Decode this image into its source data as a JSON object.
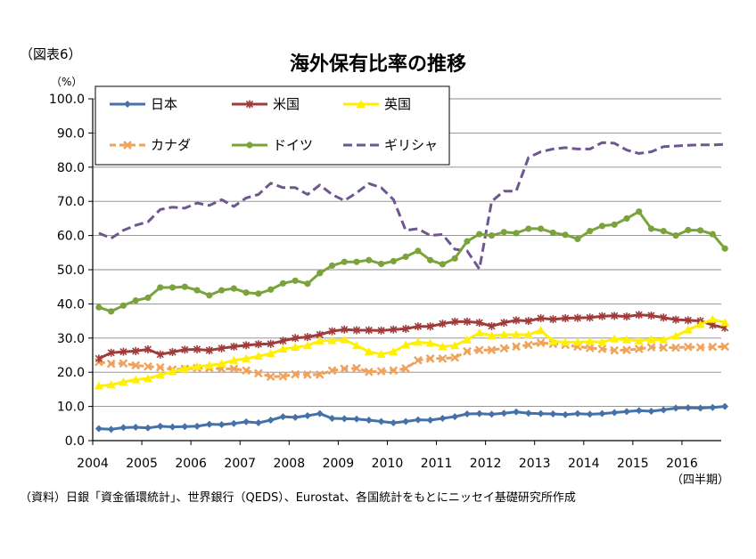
{
  "figure_label": "（図表6）",
  "source_note": "（資料）日銀「資金循環統計」、世界銀行（QEDS）、Eurostat、各国統計をもとにニッセイ基礎研究所作成",
  "chart_data": {
    "type": "line",
    "title": "海外保有比率の推移",
    "y_unit": "（%）",
    "x_unit": "（四半期）",
    "ylim": [
      0,
      100
    ],
    "yticks": [
      "0.0",
      "10.0",
      "20.0",
      "30.0",
      "40.0",
      "50.0",
      "60.0",
      "70.0",
      "80.0",
      "90.0",
      "100.0"
    ],
    "xticks": [
      "2004",
      "2005",
      "2006",
      "2007",
      "2008",
      "2009",
      "2010",
      "2011",
      "2012",
      "2013",
      "2014",
      "2015",
      "2016"
    ],
    "x_start_year": 2004,
    "grid": true,
    "legend_position": "top-left inside",
    "series": [
      {
        "name": "日本",
        "color": "#4472a8",
        "marker": "diamond",
        "dash": "solid",
        "values": [
          3.5,
          3.3,
          3.8,
          3.9,
          3.7,
          4.2,
          4.0,
          4.1,
          4.2,
          4.8,
          4.7,
          5.0,
          5.5,
          5.2,
          6.0,
          7.0,
          6.8,
          7.3,
          7.9,
          6.5,
          6.4,
          6.3,
          6.0,
          5.6,
          5.2,
          5.6,
          6.1,
          6.0,
          6.5,
          7.0,
          7.8,
          7.9,
          7.7,
          8.0,
          8.4,
          8.0,
          7.9,
          7.8,
          7.6,
          7.9,
          7.7,
          7.9,
          8.2,
          8.5,
          8.8,
          8.6,
          9.0,
          9.5,
          9.6,
          9.5,
          9.7,
          10.0
        ]
      },
      {
        "name": "米国",
        "color": "#a03b3b",
        "marker": "star",
        "dash": "solid",
        "values": [
          24.0,
          25.7,
          26.0,
          26.2,
          26.7,
          25.2,
          25.9,
          26.6,
          26.7,
          26.4,
          27.0,
          27.5,
          27.9,
          28.2,
          28.3,
          29.2,
          30.0,
          30.3,
          31.0,
          32.0,
          32.5,
          32.3,
          32.3,
          32.2,
          32.5,
          32.7,
          33.4,
          33.4,
          34.2,
          34.8,
          34.8,
          34.5,
          33.5,
          34.5,
          35.2,
          35.0,
          35.8,
          35.5,
          35.8,
          35.9,
          36.0,
          36.4,
          36.5,
          36.3,
          36.8,
          36.6,
          36.0,
          35.4,
          35.2,
          35.0,
          33.8,
          33.0
        ]
      },
      {
        "name": "英国",
        "color": "#ffef00",
        "marker": "triangle",
        "dash": "solid",
        "values": [
          16.0,
          16.3,
          17.2,
          17.8,
          18.2,
          19.2,
          20.2,
          21.0,
          21.7,
          22.0,
          22.5,
          23.5,
          24.0,
          24.7,
          25.5,
          26.8,
          27.3,
          27.8,
          29.2,
          29.3,
          29.5,
          27.8,
          26.0,
          25.3,
          26.0,
          28.0,
          28.8,
          28.5,
          27.5,
          27.8,
          29.5,
          31.5,
          30.7,
          31.0,
          31.0,
          31.0,
          32.3,
          29.0,
          28.8,
          28.8,
          29.0,
          28.8,
          29.8,
          29.5,
          29.2,
          29.6,
          29.5,
          30.6,
          32.4,
          34.0,
          35.5,
          34.5
        ]
      },
      {
        "name": "カナダ",
        "color": "#f0a25a",
        "marker": "x",
        "dash": "dash",
        "values": [
          23.0,
          22.5,
          22.6,
          22.0,
          21.7,
          21.4,
          20.8,
          21.0,
          21.2,
          21.2,
          21.0,
          21.0,
          20.5,
          19.7,
          18.7,
          18.8,
          19.4,
          19.3,
          19.3,
          20.5,
          21.0,
          21.2,
          20.1,
          20.3,
          20.5,
          21.1,
          23.5,
          24.0,
          24.0,
          24.3,
          26.1,
          26.5,
          26.5,
          27.0,
          27.5,
          28.0,
          28.6,
          28.3,
          28.0,
          27.5,
          27.1,
          26.8,
          26.4,
          26.5,
          26.8,
          27.3,
          27.2,
          27.2,
          27.4,
          27.3,
          27.4,
          27.5
        ]
      },
      {
        "name": "ドイツ",
        "color": "#7aa33c",
        "marker": "circle",
        "dash": "solid",
        "values": [
          39.0,
          37.8,
          39.5,
          41.0,
          41.8,
          44.8,
          44.8,
          45.0,
          44.0,
          42.5,
          44.0,
          44.5,
          43.3,
          43.0,
          44.2,
          46.0,
          46.8,
          45.9,
          49.0,
          51.2,
          52.3,
          52.3,
          52.8,
          51.7,
          52.5,
          53.8,
          55.5,
          52.8,
          51.6,
          53.3,
          58.3,
          60.4,
          60.0,
          61.0,
          60.7,
          62.0,
          62.0,
          60.8,
          60.2,
          59.0,
          61.3,
          62.8,
          63.2,
          65.0,
          67.0,
          62.0,
          61.3,
          60.0,
          61.6,
          61.5,
          60.4,
          56.2
        ]
      },
      {
        "name": "ギリシャ",
        "color": "#6e578f",
        "marker": "none",
        "dash": "longdash",
        "values": [
          60.7,
          59.2,
          61.5,
          63.0,
          64.0,
          67.6,
          68.3,
          68.0,
          69.5,
          68.8,
          70.5,
          68.5,
          71.0,
          72.0,
          75.3,
          74.0,
          74.0,
          72.0,
          74.8,
          72.0,
          70.2,
          72.5,
          75.2,
          74.0,
          70.5,
          61.5,
          62.0,
          60.0,
          60.3,
          56.0,
          55.5,
          50.2,
          70.0,
          73.0,
          73.0,
          82.8,
          84.5,
          85.3,
          85.7,
          85.3,
          85.3,
          87.2,
          87.0,
          85.0,
          84.0,
          84.5,
          86.0,
          86.2,
          86.4,
          86.5,
          86.5,
          86.7
        ]
      }
    ]
  }
}
